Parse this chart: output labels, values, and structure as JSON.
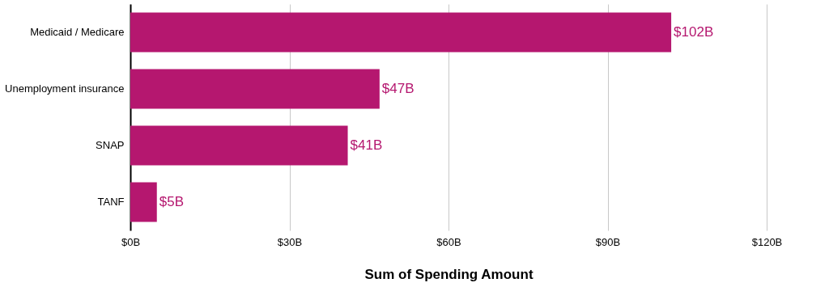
{
  "chart_data": {
    "type": "bar",
    "orientation": "horizontal",
    "xlabel": "Sum of Spending Amount",
    "categories": [
      "Medicaid / Medicare",
      "Unemployment insurance",
      "SNAP",
      "TANF"
    ],
    "values": [
      102,
      47,
      41,
      5
    ],
    "value_labels": [
      "$102B",
      "$47B",
      "$41B",
      "$5B"
    ],
    "color": "#b5176f",
    "xlim": [
      0,
      120
    ],
    "xticks": [
      {
        "value": 0,
        "label": "$0B"
      },
      {
        "value": 30,
        "label": "$30B"
      },
      {
        "value": 60,
        "label": "$60B"
      },
      {
        "value": 90,
        "label": "$90B"
      },
      {
        "value": 120,
        "label": "$120B"
      }
    ],
    "grid": "x"
  }
}
